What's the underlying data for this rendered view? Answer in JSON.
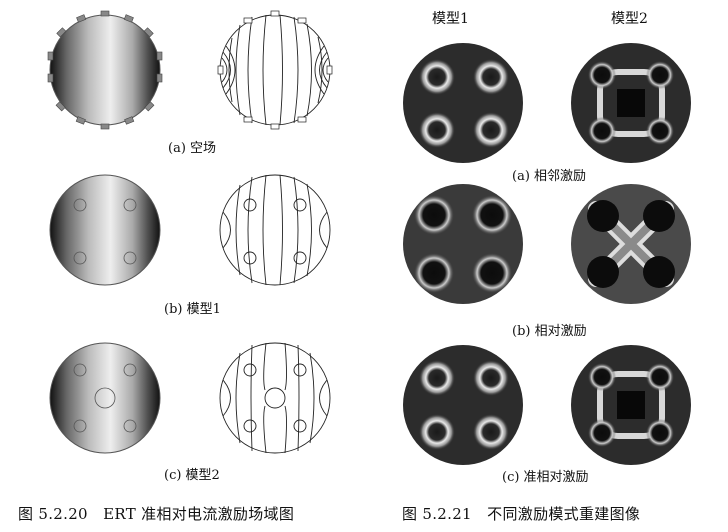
{
  "figure_left": {
    "panels": [
      {
        "label": "(a) 空场"
      },
      {
        "label": "(b) 模型1"
      },
      {
        "label": "(c) 模型2"
      }
    ],
    "caption": "图 5.2.20　ERT 准相对电流激励场域图"
  },
  "figure_right": {
    "columns": [
      "模型1",
      "模型2"
    ],
    "rows": [
      {
        "label": "(a) 相邻激励"
      },
      {
        "label": "(b) 相对激励"
      },
      {
        "label": "(c) 准相对激励"
      }
    ],
    "caption": "图 5.2.21　不同激励模式重建图像"
  }
}
